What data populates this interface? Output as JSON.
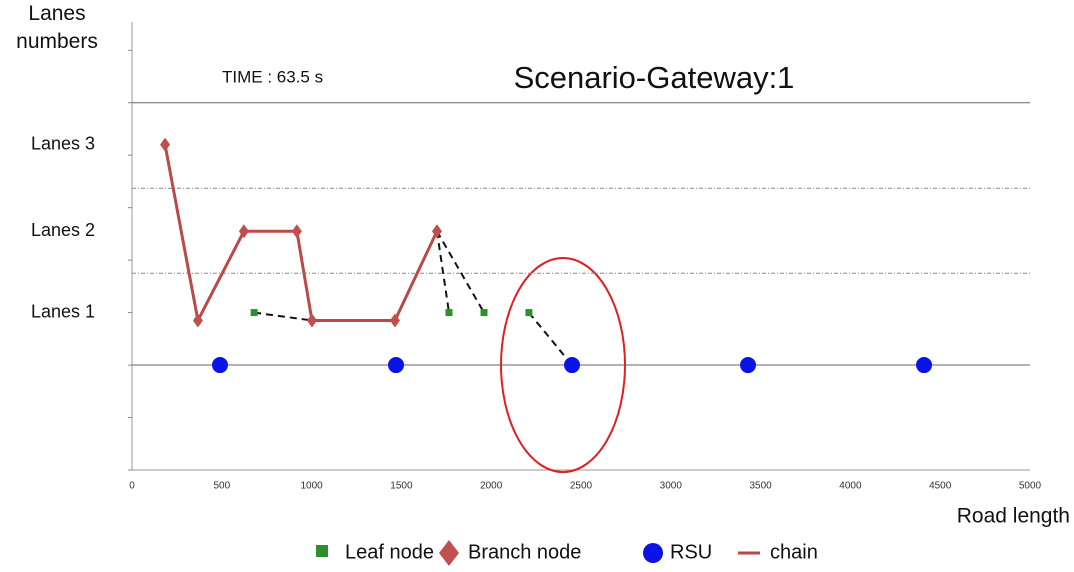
{
  "chart_data": {
    "type": "scatter",
    "title": "Scenario-Gateway:1",
    "annotation": "TIME : 63.5 s",
    "xlabel": "Road length",
    "ylabel": "Lanes numbers",
    "xlim": [
      0,
      5000
    ],
    "xticks": [
      0,
      500,
      1000,
      1500,
      2000,
      2500,
      3000,
      3500,
      4000,
      4500,
      5000
    ],
    "ylim": [
      -2,
      6.5
    ],
    "yticks": [
      {
        "value": 1,
        "label": "Lanes 1"
      },
      {
        "value": 2.55,
        "label": "Lanes 2"
      },
      {
        "value": 4.2,
        "label": "Lanes 3"
      }
    ],
    "minor_yticks": [
      -2,
      -1,
      0,
      1,
      2,
      3,
      4,
      5,
      6
    ],
    "hlines": [
      {
        "value": 5,
        "style": "solid"
      },
      {
        "value": 3.37,
        "style": "dotted"
      },
      {
        "value": 1.75,
        "style": "dotted"
      },
      {
        "value": 0,
        "style": "solid"
      }
    ],
    "series": [
      {
        "name": "Leaf node",
        "color": "#2f8f2f",
        "marker": "square",
        "x": [
          680,
          1765,
          1960,
          2210
        ],
        "values": [
          1,
          1,
          1,
          1
        ]
      },
      {
        "name": "Branch node",
        "color": "#c0504d",
        "marker": "diamond",
        "x": [
          184,
          367,
          623,
          918,
          1002,
          1464,
          1698
        ],
        "values": [
          4.2,
          0.85,
          2.55,
          2.55,
          0.85,
          0.85,
          2.55
        ]
      },
      {
        "name": "RSU",
        "color": "#0a14e6",
        "marker": "circle",
        "x": [
          490,
          1470,
          2450,
          3430,
          4410
        ],
        "values": [
          0,
          0,
          0,
          0,
          0
        ]
      },
      {
        "name": "chain",
        "color": "#b94a48",
        "marker": "line",
        "x": [
          184,
          367,
          623,
          918,
          1002,
          1464,
          1698
        ],
        "values": [
          4.2,
          0.85,
          2.55,
          2.55,
          0.85,
          0.85,
          2.55
        ]
      }
    ],
    "links": [
      {
        "x": [
          680,
          1002
        ],
        "values": [
          1,
          0.85
        ]
      },
      {
        "x": [
          1698,
          1765
        ],
        "values": [
          2.55,
          1
        ]
      },
      {
        "x": [
          1698,
          1960
        ],
        "values": [
          2.55,
          1
        ]
      },
      {
        "x": [
          2210,
          2450
        ],
        "values": [
          1,
          0
        ]
      }
    ]
  }
}
